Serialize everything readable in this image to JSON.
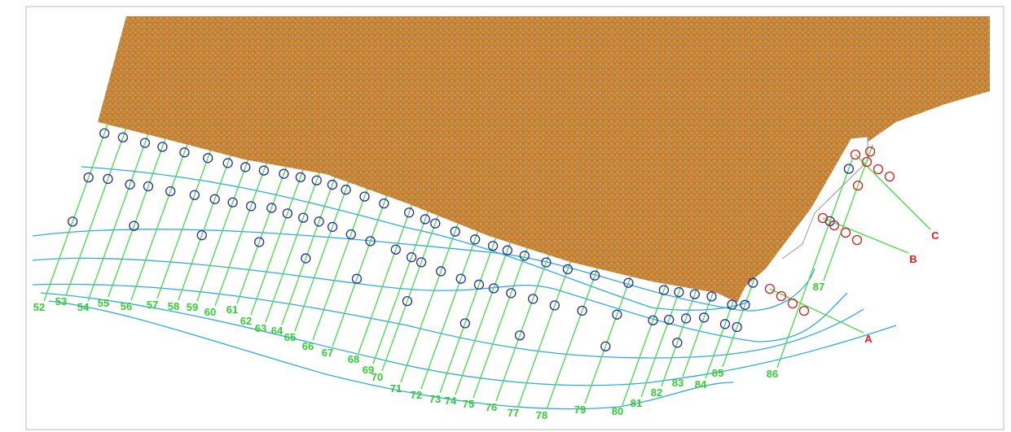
{
  "transect_labels": [
    "52",
    "53",
    "54",
    "55",
    "56",
    "57",
    "58",
    "59",
    "60",
    "61",
    "62",
    "63",
    "64",
    "65",
    "66",
    "67",
    "68",
    "69",
    "70",
    "71",
    "72",
    "73",
    "74",
    "75",
    "76",
    "77",
    "78",
    "79",
    "80",
    "81",
    "82",
    "83",
    "84",
    "85",
    "86",
    "87"
  ],
  "profile_labels": [
    "A",
    "B",
    "C"
  ]
}
